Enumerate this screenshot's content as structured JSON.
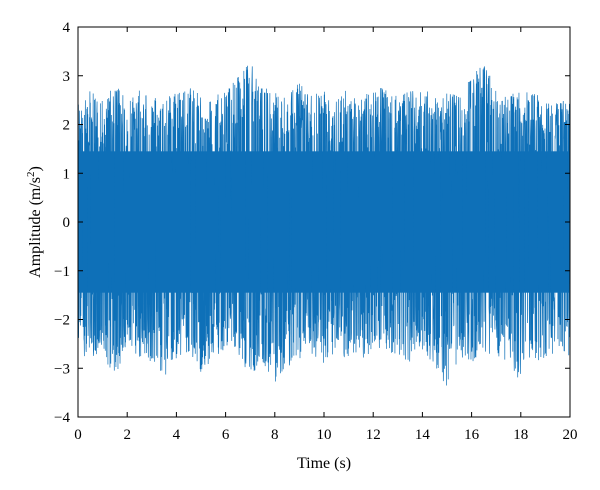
{
  "chart_data": {
    "type": "line",
    "xlabel": "Time (s)",
    "ylabel": "Amplitude (m/s",
    "ylabel_superscript": "2",
    "ylabel_suffix": ")",
    "xlim": [
      0,
      20
    ],
    "ylim": [
      -4,
      4
    ],
    "x_ticks": [
      0,
      2,
      4,
      6,
      8,
      10,
      12,
      14,
      16,
      18,
      20
    ],
    "y_ticks": [
      -4,
      -3,
      -2,
      -1,
      0,
      1,
      2,
      3,
      4
    ],
    "y_tick_labels": [
      "−4",
      "−3",
      "−2",
      "−1",
      "0",
      "1",
      "2",
      "3",
      "4"
    ],
    "x_tick_labels": [
      "0",
      "2",
      "4",
      "6",
      "8",
      "10",
      "12",
      "14",
      "16",
      "18",
      "20"
    ],
    "grid": false,
    "series": [
      {
        "color": "#0e70b8",
        "x": [
          0,
          0.5,
          1,
          1.5,
          2,
          2.5,
          3,
          3.5,
          4,
          4.5,
          5,
          5.5,
          6,
          6.5,
          7,
          7.5,
          8,
          8.5,
          9,
          9.5,
          10,
          10.5,
          11,
          11.5,
          12,
          12.5,
          13,
          13.5,
          14,
          14.5,
          15,
          15.5,
          16,
          16.5,
          17,
          17.5,
          18,
          18.5,
          19,
          19.5,
          20
        ],
        "envelope_upper": [
          2.5,
          2.7,
          2.6,
          2.8,
          2.6,
          2.7,
          2.6,
          2.5,
          2.7,
          2.8,
          2.6,
          2.6,
          2.7,
          3.0,
          3.3,
          2.8,
          2.7,
          2.6,
          2.9,
          2.6,
          2.7,
          2.6,
          2.8,
          2.6,
          2.7,
          2.8,
          2.6,
          2.7,
          2.9,
          2.6,
          2.7,
          2.6,
          3.0,
          3.3,
          2.7,
          2.6,
          2.8,
          2.7,
          2.6,
          2.5,
          2.5
        ],
        "envelope_lower": [
          -2.6,
          -2.9,
          -2.7,
          -3.3,
          -2.6,
          -2.8,
          -2.9,
          -3.2,
          -2.8,
          -2.7,
          -3.1,
          -2.8,
          -2.6,
          -2.7,
          -3.2,
          -2.9,
          -3.3,
          -3.0,
          -2.8,
          -2.7,
          -2.9,
          -2.7,
          -2.8,
          -2.9,
          -2.6,
          -2.7,
          -2.8,
          -2.9,
          -2.7,
          -3.0,
          -3.4,
          -2.8,
          -2.9,
          -2.7,
          -2.8,
          -2.9,
          -3.3,
          -2.8,
          -2.9,
          -2.6,
          -2.8
        ]
      }
    ]
  }
}
